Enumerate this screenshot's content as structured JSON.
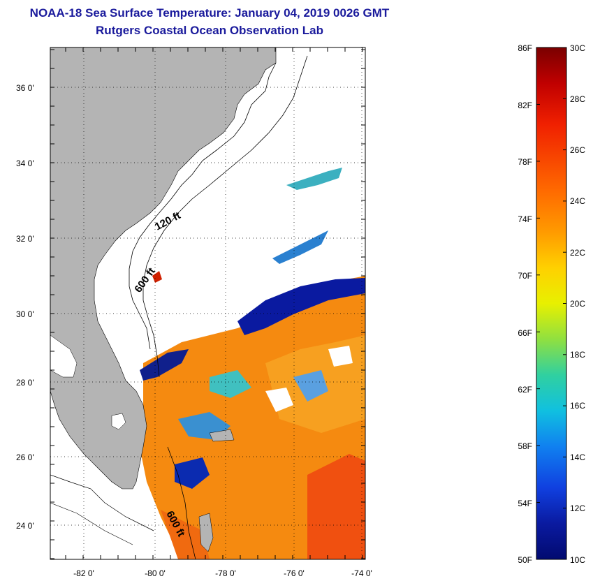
{
  "header": {
    "title": "NOAA-18 Sea Surface Temperature:  January 04, 2019 0026 GMT",
    "subtitle": "Rutgers Coastal Ocean Observation Lab"
  },
  "map": {
    "lat_labels": [
      "36 0'",
      "34 0'",
      "32 0'",
      "30 0'",
      "28 0'",
      "26 0'",
      "24 0'"
    ],
    "lon_labels": [
      "-82 0'",
      "-80 0'",
      "-78 0'",
      "-76 0'",
      "-74 0'"
    ],
    "contour_labels": [
      "120 ft",
      "600 ft",
      "600 ft"
    ]
  },
  "colorbar": {
    "f_labels": [
      "86F",
      "82F",
      "78F",
      "74F",
      "70F",
      "66F",
      "62F",
      "58F",
      "54F",
      "50F"
    ],
    "c_labels": [
      "30C",
      "28C",
      "26C",
      "24C",
      "22C",
      "20C",
      "18C",
      "16C",
      "14C",
      "12C",
      "10C"
    ],
    "colors": [
      "#7a0000",
      "#c00000",
      "#f02000",
      "#ff6a00",
      "#ff9a00",
      "#ffd000",
      "#e8f000",
      "#90e040",
      "#30d0a0",
      "#10c0e0",
      "#1080f0",
      "#1040e0",
      "#0a1aa0",
      "#020a70"
    ]
  },
  "colors": {
    "title": "#1a1a9c",
    "land": "#b4b4b4",
    "ocean_cloud": "#ffffff"
  }
}
